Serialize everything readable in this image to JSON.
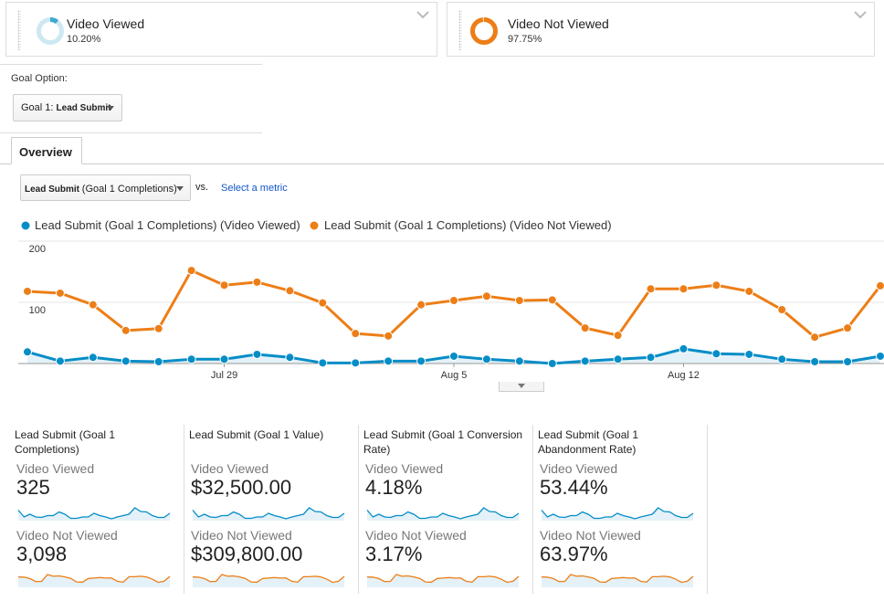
{
  "segments": [
    {
      "name": "Video Viewed",
      "percent": 10.2,
      "percent_label": "10.20%",
      "color": "#3ea8d1",
      "track": "#cde8f2"
    },
    {
      "name": "Video Not Viewed",
      "percent": 97.75,
      "percent_label": "97.75%",
      "color": "#ed7e17",
      "track": "#fbd9b8"
    }
  ],
  "goal_option": {
    "label": "Goal Option:",
    "prefix": "Goal 1:",
    "value": "Lead Submit"
  },
  "tab": "Overview",
  "metric_selector": {
    "metric": "Lead Submit",
    "detail": "(Goal 1 Completions)",
    "vs": "vs.",
    "link": "Select a metric"
  },
  "chart_data": {
    "type": "line",
    "categories": [
      null,
      null,
      null,
      null,
      null,
      null,
      "Jul 29",
      null,
      null,
      null,
      null,
      null,
      null,
      "Aug 5",
      null,
      null,
      null,
      null,
      null,
      null,
      "Aug 12",
      null,
      null,
      null,
      null,
      null,
      null
    ],
    "series": [
      {
        "name": "Lead Submit (Goal 1 Completions) (Video Viewed)",
        "color": "#058dc7",
        "values": [
          19,
          4,
          10,
          4,
          3,
          7,
          7,
          15,
          10,
          1,
          1,
          4,
          4,
          12,
          7,
          4,
          0,
          4,
          7,
          10,
          24,
          16,
          15,
          7,
          3,
          3,
          12
        ]
      },
      {
        "name": "Lead Submit (Goal 1 Completions) (Video Not Viewed)",
        "color": "#ed7e17",
        "values": [
          118,
          115,
          96,
          54,
          57,
          152,
          128,
          133,
          119,
          99,
          49,
          45,
          96,
          103,
          110,
          103,
          104,
          58,
          46,
          122,
          122,
          128,
          118,
          88,
          43,
          58,
          127
        ]
      }
    ],
    "ylim": [
      0,
      200
    ],
    "yticks": [
      100,
      200
    ],
    "grid": true
  },
  "scorecards": [
    {
      "title": "Lead Submit (Goal 1 Completions)",
      "rows": [
        {
          "segment": "Video Viewed",
          "value": "325"
        },
        {
          "segment": "Video Not Viewed",
          "value": "3,098"
        }
      ]
    },
    {
      "title": "Lead Submit (Goal 1 Value)",
      "rows": [
        {
          "segment": "Video Viewed",
          "value": "$32,500.00"
        },
        {
          "segment": "Video Not Viewed",
          "value": "$309,800.00"
        }
      ]
    },
    {
      "title": "Lead Submit (Goal 1 Conversion Rate)",
      "rows": [
        {
          "segment": "Video Viewed",
          "value": "4.18%"
        },
        {
          "segment": "Video Not Viewed",
          "value": "3.17%"
        }
      ]
    },
    {
      "title": "Lead Submit (Goal 1 Abandonment Rate)",
      "rows": [
        {
          "segment": "Video Viewed",
          "value": "53.44%"
        },
        {
          "segment": "Video Not Viewed",
          "value": "63.97%"
        }
      ]
    }
  ]
}
